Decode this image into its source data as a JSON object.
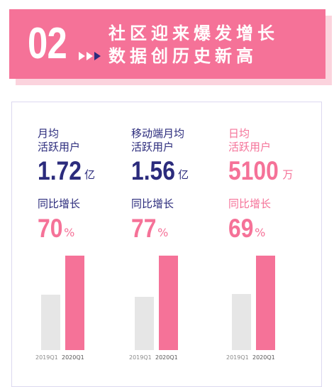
{
  "banner": {
    "number": "02",
    "title_line1": "社区迎来爆发增长",
    "title_line2": "数据创历史新高",
    "colors": {
      "banner": "#f57298",
      "shadow": "#fbd3dd",
      "arrow_dark": "#2b2b7c"
    }
  },
  "metrics": [
    {
      "label": "月均\n活跃用户",
      "value": "1.72",
      "unit": "亿",
      "growth_label": "同比增长",
      "growth_value": "70",
      "growth_unit": "%",
      "highlight": false
    },
    {
      "label": "移动端月均\n活跃用户",
      "value": "1.56",
      "unit": "亿",
      "growth_label": "同比增长",
      "growth_value": "77",
      "growth_unit": "%",
      "highlight": false
    },
    {
      "label": "日均\n活跃用户",
      "value": "5100",
      "unit": "万",
      "growth_label": "同比增长",
      "growth_value": "69",
      "growth_unit": "%",
      "highlight": true
    }
  ],
  "chart_data": [
    {
      "type": "bar",
      "categories": [
        "2019Q1",
        "2020Q1"
      ],
      "values": [
        1.01,
        1.72
      ],
      "colors": [
        "#e6e6e6",
        "#f57298"
      ]
    },
    {
      "type": "bar",
      "categories": [
        "2019Q1",
        "2020Q1"
      ],
      "values": [
        0.88,
        1.56
      ],
      "colors": [
        "#e6e6e6",
        "#f57298"
      ]
    },
    {
      "type": "bar",
      "categories": [
        "2019Q1",
        "2020Q1"
      ],
      "values": [
        3018,
        5100
      ],
      "colors": [
        "#e6e6e6",
        "#f57298"
      ]
    }
  ]
}
